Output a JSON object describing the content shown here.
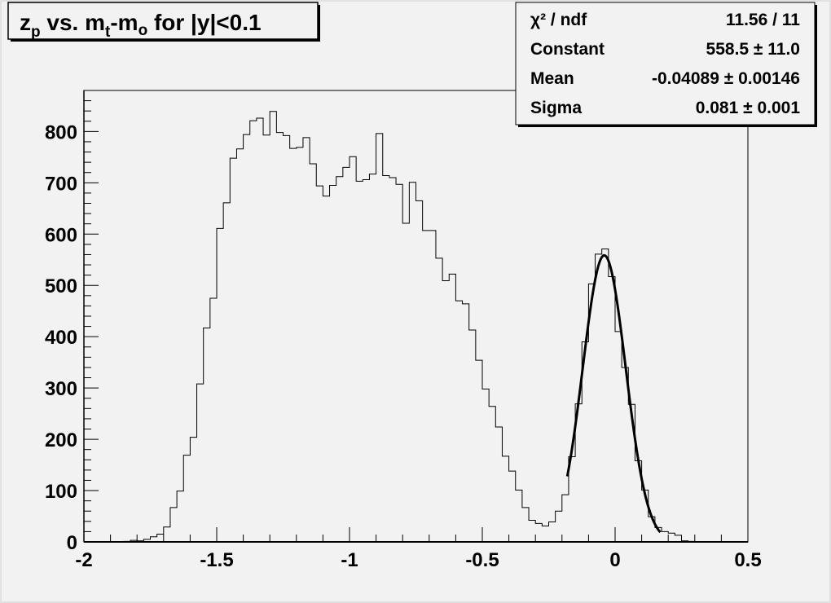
{
  "chart_data": {
    "type": "bar",
    "style": "step-histogram",
    "title": "z_p vs. m_t-m_o for |y|<0.1",
    "title_parts": {
      "z": "z",
      "p": "p",
      "vs": " vs. ",
      "m1": "m",
      "t": "t",
      "dash": "-m",
      "o": "o",
      "rest": " for |y|<0.1"
    },
    "xlabel": "",
    "ylabel": "",
    "xlim": [
      -2,
      0.5
    ],
    "ylim": [
      0,
      880
    ],
    "bin_width": 0.025,
    "x_ticks": [
      "-2",
      "-1.5",
      "-1",
      "-0.5",
      "0",
      "0.5"
    ],
    "x_tick_values": [
      -2,
      -1.5,
      -1,
      -0.5,
      0,
      0.5
    ],
    "y_ticks": [
      "0",
      "100",
      "200",
      "300",
      "400",
      "500",
      "600",
      "700",
      "800"
    ],
    "y_tick_values": [
      0,
      100,
      200,
      300,
      400,
      500,
      600,
      700,
      800
    ],
    "values": [
      0,
      0,
      0,
      0,
      0,
      0,
      1,
      3,
      2,
      5,
      10,
      15,
      29,
      67,
      99,
      169,
      204,
      308,
      417,
      475,
      611,
      661,
      748,
      766,
      794,
      821,
      826,
      793,
      839,
      798,
      792,
      767,
      769,
      788,
      737,
      694,
      674,
      695,
      712,
      730,
      751,
      703,
      706,
      717,
      796,
      714,
      710,
      697,
      621,
      701,
      665,
      607,
      607,
      553,
      509,
      522,
      470,
      464,
      413,
      354,
      298,
      264,
      224,
      167,
      138,
      101,
      67,
      42,
      36,
      31,
      39,
      60,
      92,
      166,
      269,
      390,
      503,
      561,
      571,
      517,
      410,
      340,
      268,
      158,
      101,
      49,
      28,
      20,
      17,
      13,
      2,
      1,
      0,
      0,
      0,
      0,
      0,
      0,
      0,
      0
    ],
    "fit": {
      "function": "gaus",
      "constant": 558.5,
      "mean": -0.04089,
      "sigma": 0.081,
      "range": [
        -0.18,
        0.17
      ]
    },
    "grid": false,
    "legend": "none",
    "stats_box": {
      "placement": "top-right",
      "rows": [
        {
          "label": "χ² / ndf",
          "value": "11.56 / 11"
        },
        {
          "label": "Constant",
          "value": "558.5 ± 11.0"
        },
        {
          "label": "Mean",
          "value": "-0.04089 ± 0.00146"
        },
        {
          "label": "Sigma",
          "value": "0.081 ± 0.001"
        }
      ]
    },
    "colors": {
      "background": "#f2f2f2",
      "line": "#000000"
    }
  }
}
